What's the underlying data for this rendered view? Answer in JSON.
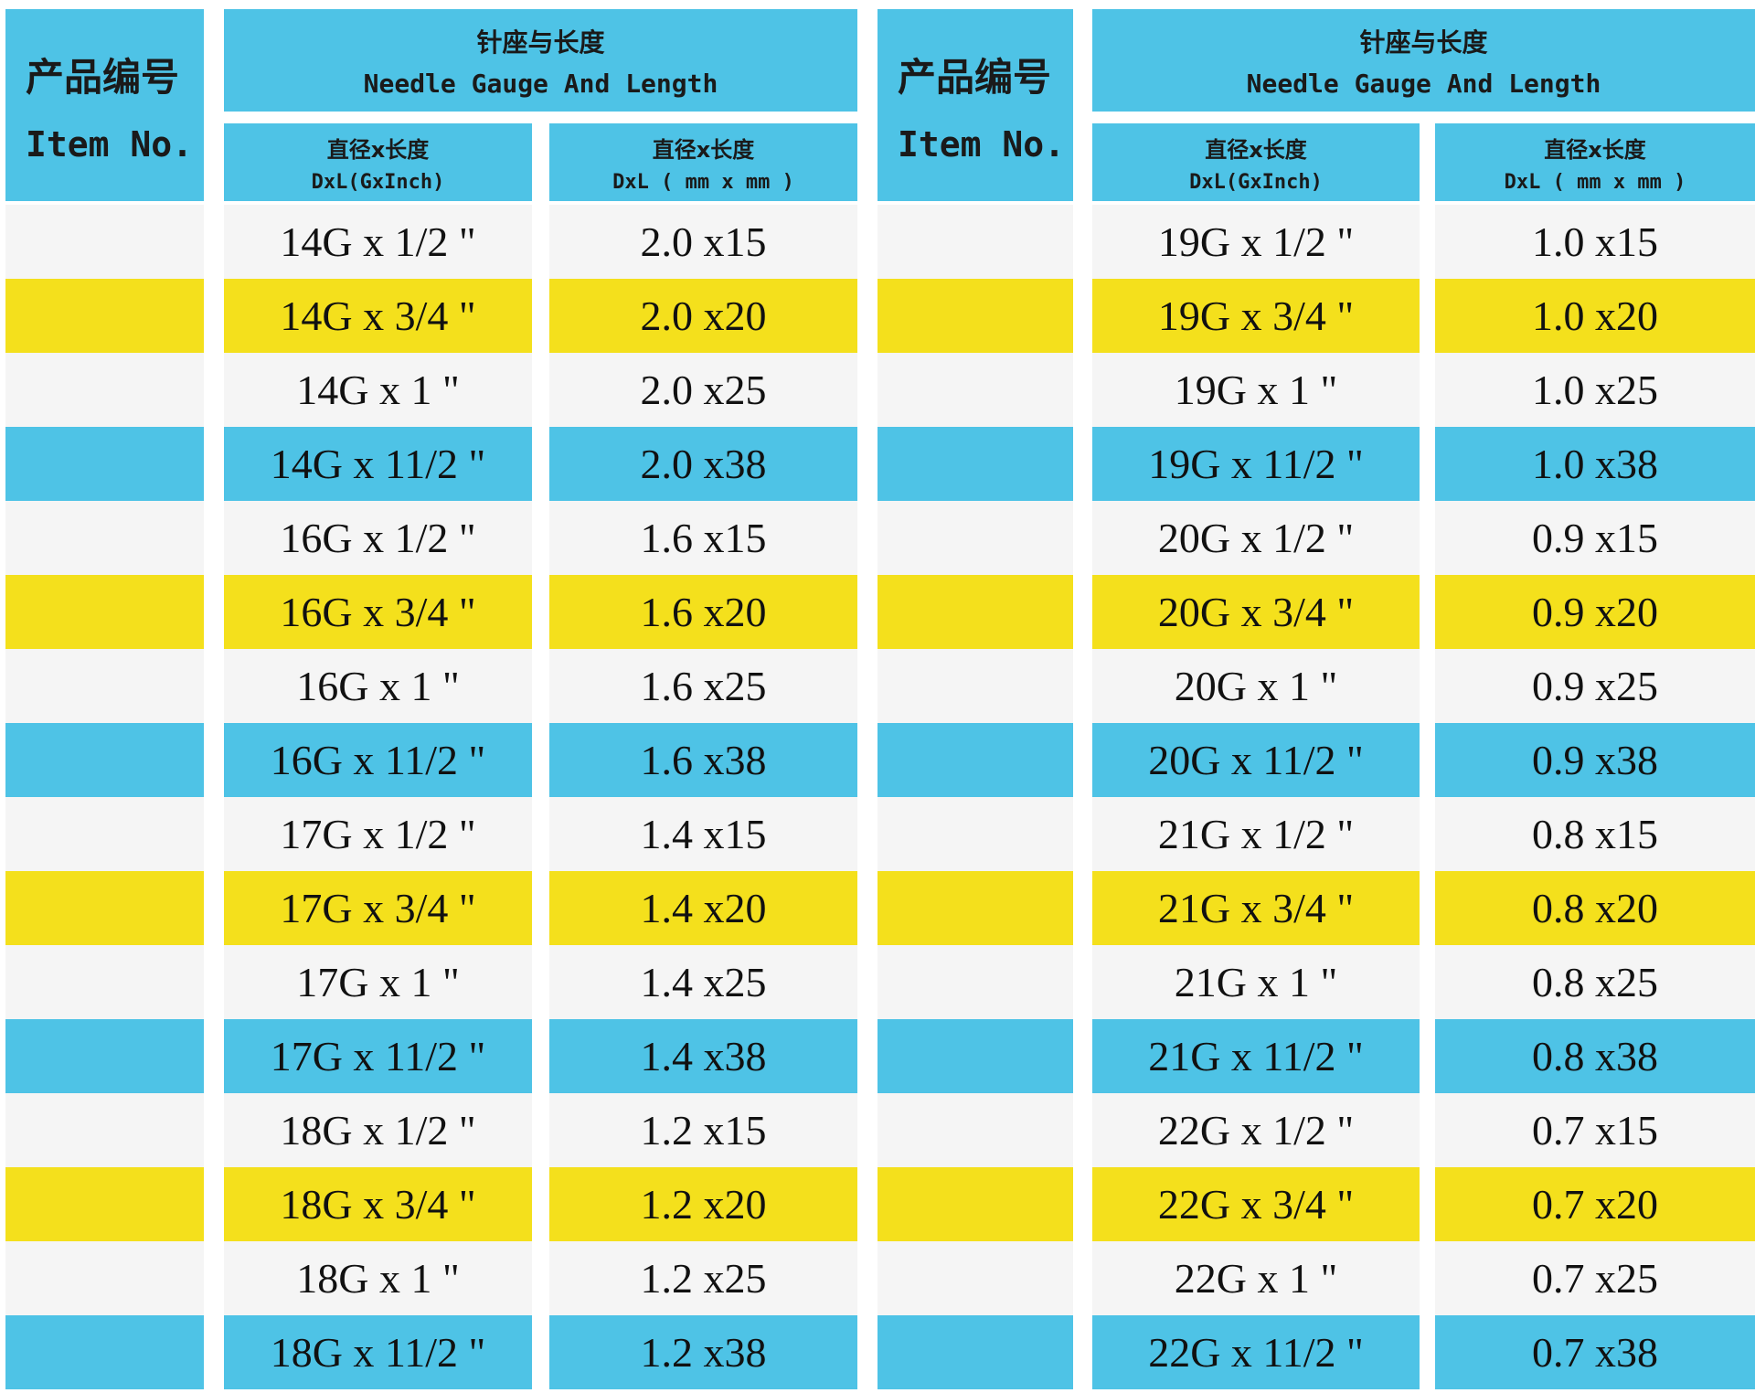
{
  "tables": [
    {
      "item_header": {
        "zh": "产品编号",
        "en": "Item No."
      },
      "group_header": {
        "zh": "针座与长度",
        "en": "Needle Gauge And Length"
      },
      "columns": [
        {
          "zh": "直径x长度",
          "en": "DxL(GxInch)"
        },
        {
          "zh": "直径x长度",
          "en": "DxL ( mm x mm )"
        }
      ],
      "rows": [
        [
          "14G x 1/2 \"",
          "2.0 x15"
        ],
        [
          "14G x 3/4 \"",
          "2.0 x20"
        ],
        [
          "14G x 1 \"",
          "2.0 x25"
        ],
        [
          "14G x 11/2 \"",
          "2.0 x38"
        ],
        [
          "16G x 1/2 \"",
          "1.6 x15"
        ],
        [
          "16G x 3/4 \"",
          "1.6 x20"
        ],
        [
          "16G x 1 \"",
          "1.6 x25"
        ],
        [
          "16G x 11/2 \"",
          "1.6 x38"
        ],
        [
          "17G x 1/2 \"",
          "1.4 x15"
        ],
        [
          "17G x 3/4 \"",
          "1.4 x20"
        ],
        [
          "17G x 1 \"",
          "1.4 x25"
        ],
        [
          "17G x 11/2 \"",
          "1.4 x38"
        ],
        [
          "18G x 1/2 \"",
          "1.2 x15"
        ],
        [
          "18G x 3/4 \"",
          "1.2 x20"
        ],
        [
          "18G x 1 \"",
          "1.2 x25"
        ],
        [
          "18G x 11/2 \"",
          "1.2 x38"
        ]
      ]
    },
    {
      "item_header": {
        "zh": "产品编号",
        "en": "Item No."
      },
      "group_header": {
        "zh": "针座与长度",
        "en": "Needle Gauge And Length"
      },
      "columns": [
        {
          "zh": "直径x长度",
          "en": "DxL(GxInch)"
        },
        {
          "zh": "直径x长度",
          "en": "DxL ( mm x mm )"
        }
      ],
      "rows": [
        [
          "19G x 1/2 \"",
          "1.0 x15"
        ],
        [
          "19G x 3/4 \"",
          "1.0 x20"
        ],
        [
          "19G x 1 \"",
          "1.0 x25"
        ],
        [
          "19G x 11/2 \"",
          "1.0 x38"
        ],
        [
          "20G x 1/2 \"",
          "0.9 x15"
        ],
        [
          "20G x 3/4 \"",
          "0.9 x20"
        ],
        [
          "20G x 1 \"",
          "0.9 x25"
        ],
        [
          "20G x 11/2 \"",
          "0.9 x38"
        ],
        [
          "21G x 1/2 \"",
          "0.8 x15"
        ],
        [
          "21G x 3/4 \"",
          "0.8 x20"
        ],
        [
          "21G x 1 \"",
          "0.8 x25"
        ],
        [
          "21G x 11/2 \"",
          "0.8 x38"
        ],
        [
          "22G x 1/2 \"",
          "0.7 x15"
        ],
        [
          "22G x 3/4 \"",
          "0.7 x20"
        ],
        [
          "22G x 1 \"",
          "0.7 x25"
        ],
        [
          "22G x 11/2 \"",
          "0.7 x38"
        ]
      ]
    }
  ]
}
